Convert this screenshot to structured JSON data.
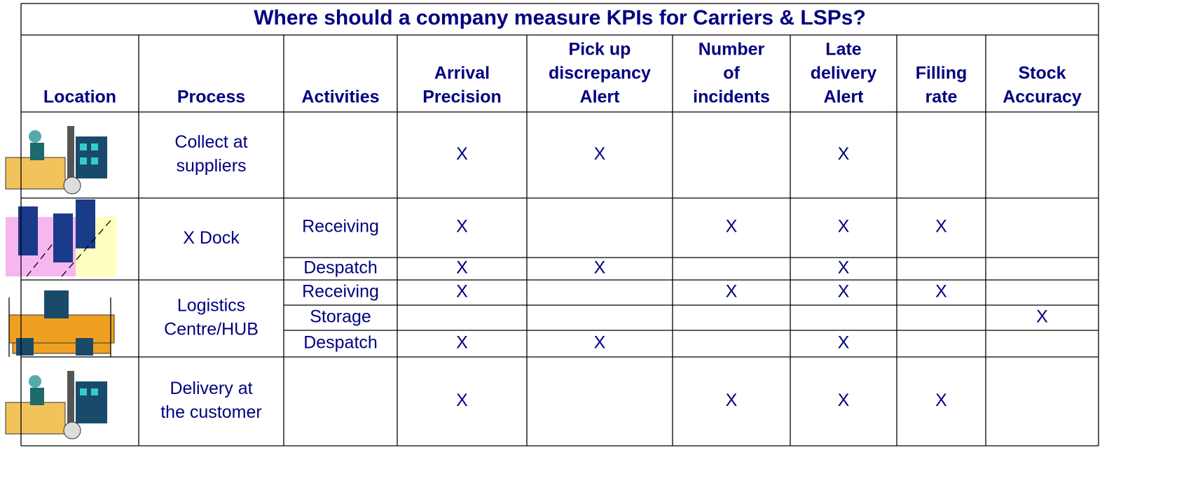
{
  "table": {
    "title": "Where should a company measure KPIs for Carriers & LSPs?",
    "columns": [
      [
        "Location"
      ],
      [
        "Process"
      ],
      [
        "Activities"
      ],
      [
        "Arrival",
        "Precision"
      ],
      [
        "Pick up",
        "discrepancy",
        "Alert"
      ],
      [
        "Number",
        "of",
        "incidents"
      ],
      [
        "Late",
        "delivery",
        "Alert"
      ],
      [
        "Filling",
        "rate"
      ],
      [
        "Stock",
        "Accuracy"
      ]
    ],
    "groups": [
      {
        "process": [
          "Collect at",
          "suppliers"
        ],
        "rows": [
          {
            "marks": [
              "X",
              "X",
              null,
              "X",
              null,
              null
            ]
          }
        ]
      },
      {
        "process": [
          "X Dock"
        ],
        "rows": [
          {
            "activity": "Receiving",
            "marks": [
              "X",
              null,
              "X",
              "X",
              "X",
              null
            ]
          },
          {
            "activity": "Despatch",
            "marks": [
              "X",
              "X",
              null,
              "X",
              null,
              null
            ]
          }
        ]
      },
      {
        "process": [
          "Logistics",
          "Centre/HUB"
        ],
        "rows": [
          {
            "activity": "Receiving",
            "marks": [
              "X",
              null,
              "X",
              "X",
              "X",
              null
            ]
          },
          {
            "activity": "Storage",
            "marks": [
              null,
              null,
              null,
              null,
              null,
              "X"
            ]
          },
          {
            "activity": "Despatch",
            "marks": [
              "X",
              "X",
              null,
              "X",
              null,
              null
            ]
          }
        ]
      },
      {
        "process": [
          "Delivery at",
          "the customer"
        ],
        "rows": [
          {
            "marks": [
              "X",
              null,
              "X",
              "X",
              "X",
              null
            ]
          }
        ]
      }
    ]
  }
}
